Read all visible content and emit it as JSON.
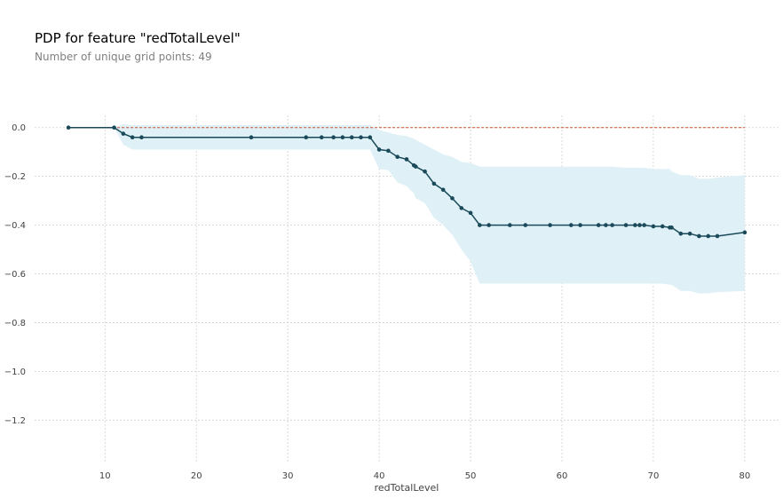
{
  "title": "PDP for feature \"redTotalLevel\"",
  "subtitle": "Number of unique grid points: 49",
  "chart_data": {
    "type": "line",
    "xlabel": "redTotalLevel",
    "ylabel": "",
    "xlim": [
      2.3,
      83.7
    ],
    "ylim": [
      -1.37,
      0.05
    ],
    "xticks": [
      10,
      20,
      30,
      40,
      50,
      60,
      70,
      80
    ],
    "yticks": [
      0.0,
      -0.2,
      -0.4,
      -0.6,
      -0.8,
      -1.0,
      -1.2
    ],
    "xtick_labels": [
      "10",
      "20",
      "30",
      "40",
      "50",
      "60",
      "70",
      "80"
    ],
    "ytick_labels": [
      "0.0",
      "−0.2",
      "−0.4",
      "−0.6",
      "−0.8",
      "−1.0",
      "−1.2"
    ],
    "grid": true,
    "colors": {
      "line": "#1a4a5a",
      "band": "#dff0f7",
      "baseline": "#c8522f",
      "grid": "#d0d0d0"
    },
    "baseline": 0.0,
    "x": [
      6,
      11,
      12,
      13,
      14,
      26,
      32,
      33.7,
      35,
      36,
      37,
      38,
      39,
      40,
      41,
      42,
      43,
      43.8,
      44,
      45,
      46,
      47,
      48,
      49,
      50,
      51,
      52,
      54.3,
      56,
      58.7,
      61,
      62,
      64,
      64.8,
      65.5,
      67,
      68,
      68.5,
      69,
      70,
      71,
      71.8,
      72,
      73,
      74,
      75,
      76,
      77,
      80
    ],
    "pdp": [
      0.0,
      0.0,
      -0.025,
      -0.04,
      -0.04,
      -0.04,
      -0.04,
      -0.04,
      -0.04,
      -0.04,
      -0.04,
      -0.04,
      -0.04,
      -0.09,
      -0.095,
      -0.12,
      -0.13,
      -0.155,
      -0.16,
      -0.18,
      -0.23,
      -0.255,
      -0.29,
      -0.33,
      -0.35,
      -0.4,
      -0.4,
      -0.4,
      -0.4,
      -0.4,
      -0.4,
      -0.4,
      -0.4,
      -0.4,
      -0.4,
      -0.4,
      -0.4,
      -0.4,
      -0.4,
      -0.405,
      -0.405,
      -0.41,
      -0.41,
      -0.435,
      -0.435,
      -0.445,
      -0.445,
      -0.445,
      -0.43
    ],
    "band_upper": [
      0.0,
      0.0,
      0.015,
      0.01,
      0.01,
      0.01,
      0.01,
      0.01,
      0.01,
      0.01,
      0.01,
      0.01,
      0.01,
      -0.01,
      -0.02,
      -0.03,
      -0.035,
      -0.045,
      -0.05,
      -0.07,
      -0.09,
      -0.11,
      -0.12,
      -0.14,
      -0.145,
      -0.16,
      -0.16,
      -0.16,
      -0.16,
      -0.16,
      -0.16,
      -0.16,
      -0.16,
      -0.16,
      -0.16,
      -0.165,
      -0.165,
      -0.165,
      -0.165,
      -0.17,
      -0.17,
      -0.17,
      -0.18,
      -0.195,
      -0.195,
      -0.21,
      -0.21,
      -0.205,
      -0.195
    ],
    "band_lower": [
      0.0,
      0.0,
      -0.07,
      -0.09,
      -0.09,
      -0.09,
      -0.09,
      -0.09,
      -0.09,
      -0.09,
      -0.09,
      -0.09,
      -0.09,
      -0.17,
      -0.175,
      -0.225,
      -0.24,
      -0.27,
      -0.29,
      -0.31,
      -0.37,
      -0.4,
      -0.44,
      -0.5,
      -0.55,
      -0.64,
      -0.64,
      -0.64,
      -0.64,
      -0.64,
      -0.64,
      -0.64,
      -0.64,
      -0.64,
      -0.64,
      -0.64,
      -0.64,
      -0.64,
      -0.64,
      -0.64,
      -0.64,
      -0.645,
      -0.645,
      -0.67,
      -0.67,
      -0.68,
      -0.68,
      -0.675,
      -0.67
    ]
  }
}
